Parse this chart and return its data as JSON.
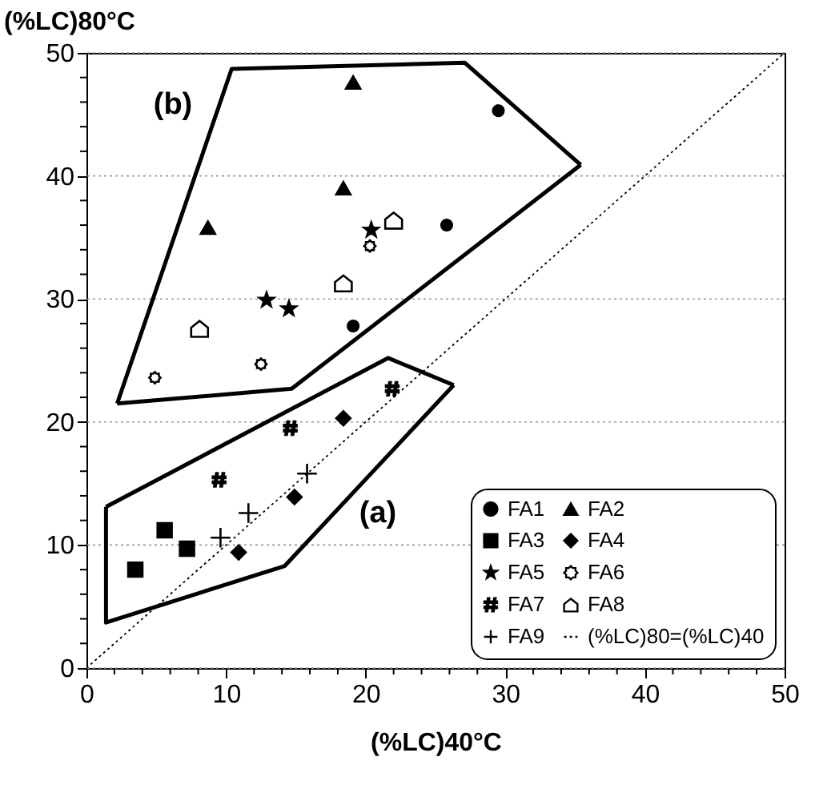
{
  "chart_data": {
    "type": "scatter",
    "xlabel": "(%LC)40°C",
    "ylabel": "(%LC)80°C",
    "xlim": [
      0,
      50
    ],
    "ylim": [
      0,
      50
    ],
    "xticks": [
      0,
      {
        "value": 2,
        "label": null
      },
      {
        "value": 4,
        "label": null
      },
      {
        "value": 6,
        "label": null
      },
      {
        "value": 8,
        "label": null
      },
      10,
      {
        "value": 12,
        "label": null
      },
      {
        "value": 14,
        "label": null
      },
      {
        "value": 16,
        "label": null
      },
      {
        "value": 18,
        "label": null
      },
      20,
      {
        "value": 22,
        "label": null
      },
      {
        "value": 24,
        "label": null
      },
      {
        "value": 26,
        "label": null
      },
      {
        "value": 28,
        "label": null
      },
      30,
      {
        "value": 32,
        "label": null
      },
      {
        "value": 34,
        "label": null
      },
      {
        "value": 36,
        "label": null
      },
      {
        "value": 38,
        "label": null
      },
      40,
      {
        "value": 42,
        "label": null
      },
      {
        "value": 44,
        "label": null
      },
      {
        "value": 46,
        "label": null
      },
      {
        "value": 48,
        "label": null
      },
      50
    ],
    "yticks": [
      0,
      {
        "value": 2,
        "label": null
      },
      {
        "value": 4,
        "label": null
      },
      {
        "value": 6,
        "label": null
      },
      {
        "value": 8,
        "label": null
      },
      10,
      {
        "value": 12,
        "label": null
      },
      {
        "value": 14,
        "label": null
      },
      {
        "value": 16,
        "label": null
      },
      {
        "value": 18,
        "label": null
      },
      20,
      {
        "value": 22,
        "label": null
      },
      {
        "value": 24,
        "label": null
      },
      {
        "value": 26,
        "label": null
      },
      {
        "value": 28,
        "label": null
      },
      30,
      {
        "value": 32,
        "label": null
      },
      {
        "value": 34,
        "label": null
      },
      {
        "value": 36,
        "label": null
      },
      {
        "value": 38,
        "label": null
      },
      40,
      {
        "value": 42,
        "label": null
      },
      {
        "value": 44,
        "label": null
      },
      {
        "value": 46,
        "label": null
      },
      {
        "value": 48,
        "label": null
      },
      50
    ],
    "grid": "y",
    "legend": "bottom right",
    "series": [
      {
        "type": "line",
        "color": "#000000",
        "x": [
          2.2,
          10.4,
          27.1,
          35.4
        ],
        "values": [
          21.5,
          48.7,
          49.2,
          40.9
        ]
      },
      {
        "type": "line",
        "color": "#000000",
        "x": [
          2.2,
          14.7,
          35.4
        ],
        "values": [
          21.5,
          22.7,
          40.9
        ]
      },
      {
        "type": "line",
        "color": "#000000",
        "x": [
          1.4,
          21.6,
          26.3
        ],
        "values": [
          13.1,
          25.2,
          23.0
        ]
      },
      {
        "type": "line",
        "color": "#000000",
        "x": [
          1.4,
          1.4,
          14.2,
          26.3
        ],
        "values": [
          13.1,
          3.7,
          8.3,
          23.0
        ]
      },
      {
        "name": "FA1",
        "type": "scatter",
        "marker": "circle",
        "color": "#000000",
        "x": [
          29.5,
          25.8,
          19.1
        ],
        "values": [
          45.3,
          36.0,
          27.8
        ]
      },
      {
        "name": "FA2",
        "type": "scatter",
        "marker": "triangle",
        "color": "#000000",
        "x": [
          19.1,
          18.4,
          8.7
        ],
        "values": [
          47.6,
          39.0,
          35.8
        ]
      },
      {
        "name": "FA3",
        "type": "scatter",
        "marker": "square",
        "color": "#000000",
        "x": [
          5.6,
          7.2,
          3.5
        ],
        "values": [
          11.2,
          9.7,
          8.0
        ]
      },
      {
        "name": "FA4",
        "type": "scatter",
        "marker": "diamond",
        "color": "#000000",
        "x": [
          18.4,
          14.9,
          10.9
        ],
        "values": [
          20.3,
          13.9,
          9.4
        ]
      },
      {
        "name": "FA5",
        "type": "scatter",
        "marker": "star",
        "color": "#000000",
        "x": [
          20.4,
          12.9,
          14.5
        ],
        "values": [
          35.6,
          29.9,
          29.2
        ]
      },
      {
        "name": "FA6",
        "type": "scatter",
        "color": "#000000",
        "x": [
          20.3,
          12.5,
          4.9
        ],
        "values": [
          34.3,
          24.7,
          23.6
        ]
      },
      {
        "name": "FA7",
        "type": "scatter",
        "color": "#000000",
        "x": [
          21.9,
          14.6,
          9.5
        ],
        "values": [
          22.7,
          19.5,
          15.3
        ]
      },
      {
        "name": "FA8",
        "type": "scatter",
        "color": "#000000",
        "x": [
          22.0,
          18.4,
          8.1
        ],
        "values": [
          36.4,
          31.3,
          27.6
        ]
      },
      {
        "name": "FA9",
        "type": "scatter",
        "marker": "cross",
        "color": "#000000",
        "x": [
          15.8,
          11.6,
          9.6
        ],
        "values": [
          15.8,
          12.6,
          10.6
        ]
      },
      {
        "name": "(%LC)80=(%LC)40",
        "type": "line",
        "line_style": "dotted",
        "color": "#000000",
        "x": [
          0,
          50
        ],
        "values": [
          0,
          50
        ]
      }
    ],
    "annotations": [
      "(a)",
      "(b)"
    ]
  }
}
